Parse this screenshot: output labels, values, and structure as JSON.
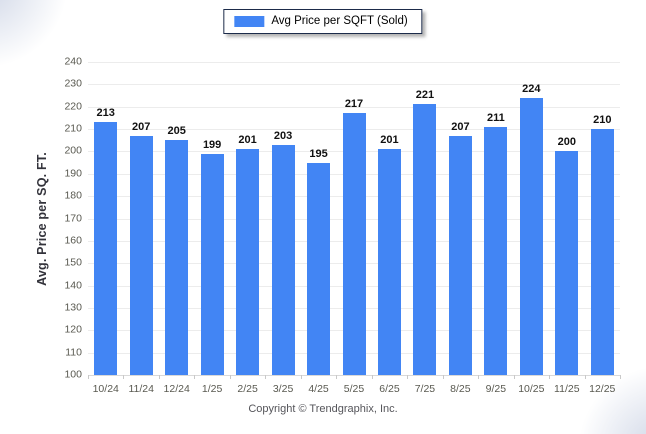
{
  "legend": {
    "label": "Avg Price per SQFT (Sold)",
    "swatch_color": "#4285f4"
  },
  "chart_data": {
    "type": "bar",
    "title": "Avg Price per SQFT (Sold)",
    "categories": [
      "10/24",
      "11/24",
      "12/24",
      "1/25",
      "2/25",
      "3/25",
      "4/25",
      "5/25",
      "6/25",
      "7/25",
      "8/25",
      "9/25",
      "10/25",
      "11/25",
      "12/25"
    ],
    "values": [
      213,
      207,
      205,
      199,
      201,
      203,
      195,
      217,
      201,
      221,
      207,
      211,
      224,
      200,
      210
    ],
    "xlabel": "",
    "ylabel": "Avg. Price per SQ. FT.",
    "ylim": [
      100,
      240
    ],
    "ytick_step": 10,
    "grid": true,
    "legend_position": "top-center",
    "bar_color": "#4285f4",
    "value_labels": true
  },
  "footer": {
    "text": "Copyright © Trendgraphix, Inc."
  }
}
